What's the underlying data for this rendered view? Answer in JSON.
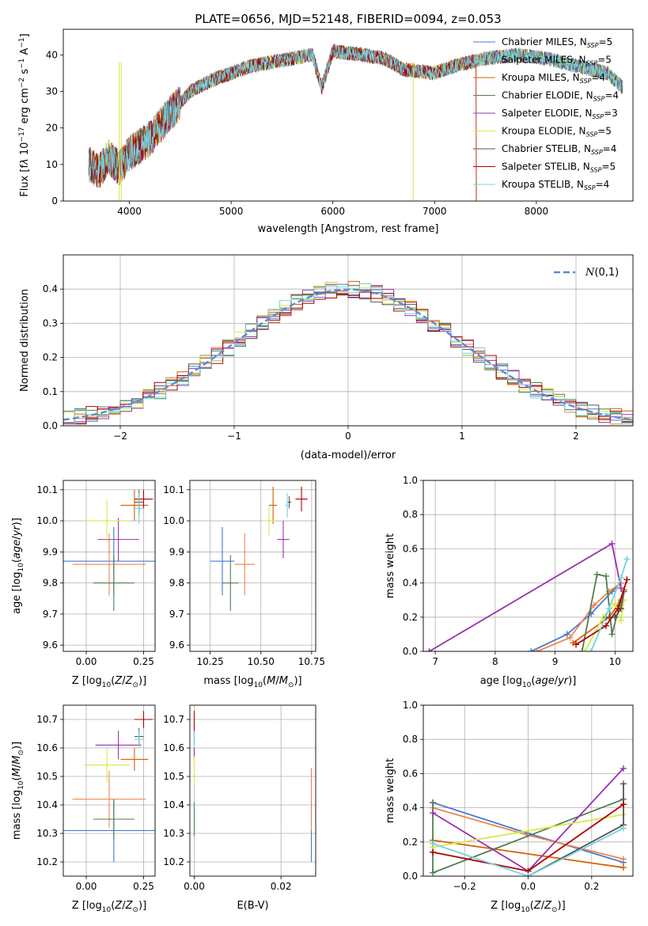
{
  "figure": {
    "title": "PLATE=0656, MJD=52148, FIBERID=0094, z=0.053"
  },
  "models": [
    {
      "name": "Chabrier MILES",
      "nssp": "5",
      "color": "#4878d0"
    },
    {
      "name": "Salpeter MILES",
      "nssp": "5",
      "color": "#ee854a"
    },
    {
      "name": "Kroupa MILES",
      "nssp": "4",
      "color": "#d65f00"
    },
    {
      "name": "Chabrier ELODIE",
      "nssp": "4",
      "color": "#4f7f4f"
    },
    {
      "name": "Salpeter ELODIE",
      "nssp": "3",
      "color": "#9b30b0"
    },
    {
      "name": "Kroupa ELODIE",
      "nssp": "5",
      "color": "#d8e84a"
    },
    {
      "name": "Chabrier STELIB",
      "nssp": "4",
      "color": "#555555"
    },
    {
      "name": "Salpeter STELIB",
      "nssp": "5",
      "color": "#b00000"
    },
    {
      "name": "Kroupa STELIB",
      "nssp": "4",
      "color": "#76d2de"
    }
  ],
  "chart_data": [
    {
      "id": "spectrum",
      "type": "line",
      "xlabel": "wavelength [Angstrom, rest frame]",
      "ylabel": "Flux [f_λ 10^-17 erg cm^-2 s^-1 A^-1]",
      "xlim": [
        3350,
        8950
      ],
      "ylim": [
        0,
        47
      ],
      "xticks": [
        4000,
        5000,
        6000,
        7000,
        8000
      ],
      "yticks": [
        0,
        10,
        20,
        30,
        40
      ],
      "legend_position": "top-right",
      "continuum": [
        [
          3600,
          10
        ],
        [
          3700,
          8
        ],
        [
          3800,
          12
        ],
        [
          3900,
          9
        ],
        [
          4000,
          13
        ],
        [
          4200,
          17
        ],
        [
          4400,
          24
        ],
        [
          4600,
          30
        ],
        [
          4800,
          33
        ],
        [
          5000,
          35
        ],
        [
          5200,
          37
        ],
        [
          5400,
          38
        ],
        [
          5600,
          39
        ],
        [
          5800,
          40
        ],
        [
          5890,
          31
        ],
        [
          6000,
          41
        ],
        [
          6300,
          40
        ],
        [
          6500,
          39
        ],
        [
          6700,
          36
        ],
        [
          7000,
          35
        ],
        [
          7200,
          37
        ],
        [
          7500,
          39
        ],
        [
          7800,
          40
        ],
        [
          8100,
          39
        ],
        [
          8400,
          37
        ],
        [
          8700,
          35
        ],
        [
          8850,
          31
        ]
      ]
    },
    {
      "id": "residuals",
      "type": "histogram",
      "xlabel": "(data-model)/error",
      "ylabel": "Normed distribution",
      "xlim": [
        -2.5,
        2.5
      ],
      "ylim": [
        0,
        0.5
      ],
      "xticks": [
        -2,
        -1,
        0,
        1,
        2
      ],
      "yticks": [
        0.0,
        0.1,
        0.2,
        0.3,
        0.4
      ],
      "grid": true,
      "legend_position": "top-right",
      "reference": "N(0,1)",
      "bin_width": 0.1
    },
    {
      "id": "age_vs_Z",
      "type": "errorbar",
      "xlabel": "Z [log10(Z/Z⊙)]",
      "ylabel": "age [log10(age/yr)]",
      "xlim": [
        -0.1,
        0.3
      ],
      "ylim": [
        9.58,
        10.13
      ],
      "xticks": [
        0.0,
        0.25
      ],
      "yticks": [
        9.6,
        9.7,
        9.8,
        9.9,
        10.0,
        10.1
      ],
      "grid": true,
      "points": [
        {
          "x": 0.12,
          "y": 9.87,
          "xerr": 0.23,
          "yerr": 0.11,
          "model": 0
        },
        {
          "x": 0.1,
          "y": 9.86,
          "xerr": 0.16,
          "yerr": 0.1,
          "model": 1
        },
        {
          "x": 0.21,
          "y": 10.05,
          "xerr": 0.06,
          "yerr": 0.05,
          "model": 2
        },
        {
          "x": 0.12,
          "y": 9.8,
          "xerr": 0.09,
          "yerr": 0.09,
          "model": 3
        },
        {
          "x": 0.14,
          "y": 9.94,
          "xerr": 0.09,
          "yerr": 0.07,
          "model": 4
        },
        {
          "x": 0.09,
          "y": 10.0,
          "xerr": 0.1,
          "yerr": 0.07,
          "model": 5
        },
        {
          "x": 0.23,
          "y": 10.06,
          "xerr": 0.02,
          "yerr": 0.04,
          "model": 6
        },
        {
          "x": 0.25,
          "y": 10.07,
          "xerr": 0.04,
          "yerr": 0.03,
          "model": 7
        },
        {
          "x": 0.23,
          "y": 10.04,
          "xerr": 0.02,
          "yerr": 0.05,
          "model": 8
        }
      ]
    },
    {
      "id": "age_vs_mass",
      "type": "errorbar",
      "xlabel": "mass [log10(M/M⊙)]",
      "xlim": [
        10.15,
        10.77
      ],
      "ylim": [
        9.58,
        10.13
      ],
      "xticks": [
        10.25,
        10.5,
        10.75
      ],
      "yticks": [
        9.6,
        9.7,
        9.8,
        9.9,
        10.0,
        10.1
      ],
      "grid": true,
      "points": [
        {
          "x": 10.31,
          "y": 9.87,
          "xerr": 0.06,
          "yerr": 0.11,
          "model": 0
        },
        {
          "x": 10.42,
          "y": 9.86,
          "xerr": 0.05,
          "yerr": 0.1,
          "model": 1
        },
        {
          "x": 10.56,
          "y": 10.05,
          "xerr": 0.02,
          "yerr": 0.06,
          "model": 2
        },
        {
          "x": 10.35,
          "y": 9.8,
          "xerr": 0.04,
          "yerr": 0.09,
          "model": 3
        },
        {
          "x": 10.61,
          "y": 9.94,
          "xerr": 0.03,
          "yerr": 0.06,
          "model": 4
        },
        {
          "x": 10.54,
          "y": 10.0,
          "xerr": 0.03,
          "yerr": 0.05,
          "model": 5
        },
        {
          "x": 10.64,
          "y": 10.06,
          "xerr": 0.01,
          "yerr": 0.02,
          "model": 6
        },
        {
          "x": 10.7,
          "y": 10.07,
          "xerr": 0.03,
          "yerr": 0.04,
          "model": 7
        },
        {
          "x": 10.63,
          "y": 10.05,
          "xerr": 0.01,
          "yerr": 0.04,
          "model": 8
        }
      ]
    },
    {
      "id": "weight_vs_age",
      "type": "line",
      "xlabel": "age [log10(age/yr)]",
      "ylabel": "mass weight",
      "xlim": [
        6.8,
        10.3
      ],
      "ylim": [
        0,
        1.0
      ],
      "xticks": [
        7,
        8,
        9,
        10
      ],
      "yticks": [
        0.0,
        0.2,
        0.4,
        0.6,
        0.8,
        1.0
      ],
      "grid": true,
      "series": [
        {
          "model": 0,
          "points": [
            [
              8.6,
              0.0
            ],
            [
              9.2,
              0.1
            ],
            [
              9.6,
              0.22
            ],
            [
              9.95,
              0.35
            ],
            [
              10.1,
              0.4
            ]
          ]
        },
        {
          "model": 1,
          "points": [
            [
              8.7,
              0.0
            ],
            [
              9.25,
              0.08
            ],
            [
              9.65,
              0.27
            ],
            [
              9.9,
              0.35
            ],
            [
              10.1,
              0.4
            ]
          ]
        },
        {
          "model": 2,
          "points": [
            [
              9.3,
              0.05
            ],
            [
              9.9,
              0.2
            ],
            [
              10.05,
              0.27
            ],
            [
              10.15,
              0.36
            ]
          ]
        },
        {
          "model": 3,
          "points": [
            [
              9.45,
              0.0
            ],
            [
              9.7,
              0.45
            ],
            [
              9.85,
              0.44
            ],
            [
              9.95,
              0.1
            ],
            [
              10.1,
              0.3
            ]
          ]
        },
        {
          "model": 4,
          "points": [
            [
              6.9,
              0.0
            ],
            [
              9.95,
              0.63
            ],
            [
              10.1,
              0.37
            ]
          ]
        },
        {
          "model": 5,
          "points": [
            [
              9.5,
              0.0
            ],
            [
              9.8,
              0.2
            ],
            [
              10.0,
              0.28
            ],
            [
              10.1,
              0.18
            ],
            [
              10.15,
              0.3
            ]
          ]
        },
        {
          "model": 6,
          "points": [
            [
              9.85,
              0.2
            ],
            [
              10.0,
              0.2
            ],
            [
              10.1,
              0.25
            ],
            [
              10.15,
              0.35
            ]
          ]
        },
        {
          "model": 7,
          "points": [
            [
              9.35,
              0.04
            ],
            [
              9.85,
              0.15
            ],
            [
              10.05,
              0.25
            ],
            [
              10.2,
              0.42
            ]
          ]
        },
        {
          "model": 8,
          "points": [
            [
              9.6,
              0.0
            ],
            [
              9.9,
              0.25
            ],
            [
              10.1,
              0.43
            ],
            [
              10.2,
              0.54
            ]
          ]
        }
      ]
    },
    {
      "id": "mass_vs_Z",
      "type": "errorbar",
      "xlabel": "Z [log10(Z/Z⊙)]",
      "ylabel": "mass [log10(M/M⊙)]",
      "xlim": [
        -0.1,
        0.3
      ],
      "ylim": [
        10.15,
        10.75
      ],
      "xticks": [
        0.0,
        0.25
      ],
      "yticks": [
        10.2,
        10.3,
        10.4,
        10.5,
        10.6,
        10.7
      ],
      "grid": true,
      "points": [
        {
          "x": 0.12,
          "y": 10.31,
          "xerr": 0.23,
          "yerr": 0.11,
          "model": 0
        },
        {
          "x": 0.1,
          "y": 10.42,
          "xerr": 0.16,
          "yerr": 0.1,
          "model": 1
        },
        {
          "x": 0.21,
          "y": 10.56,
          "xerr": 0.06,
          "yerr": 0.04,
          "model": 2
        },
        {
          "x": 0.12,
          "y": 10.35,
          "xerr": 0.09,
          "yerr": 0.07,
          "model": 3
        },
        {
          "x": 0.14,
          "y": 10.61,
          "xerr": 0.1,
          "yerr": 0.05,
          "model": 4
        },
        {
          "x": 0.09,
          "y": 10.54,
          "xerr": 0.1,
          "yerr": 0.06,
          "model": 5
        },
        {
          "x": 0.23,
          "y": 10.64,
          "xerr": 0.02,
          "yerr": 0.03,
          "model": 6
        },
        {
          "x": 0.25,
          "y": 10.7,
          "xerr": 0.04,
          "yerr": 0.03,
          "model": 7
        },
        {
          "x": 0.23,
          "y": 10.63,
          "xerr": 0.02,
          "yerr": 0.03,
          "model": 8
        }
      ]
    },
    {
      "id": "mass_vs_ebv",
      "type": "errorbar",
      "xlabel": "E(B-V)",
      "xlim": [
        -0.001,
        0.028
      ],
      "ylim": [
        10.15,
        10.75
      ],
      "xticks": [
        0.0,
        0.02
      ],
      "yticks": [
        10.2,
        10.3,
        10.4,
        10.5,
        10.6,
        10.7
      ],
      "grid": true,
      "points": [
        {
          "x": 0.027,
          "y": 10.31,
          "xerr": 0,
          "yerr": 0.11,
          "model": 0
        },
        {
          "x": 0.027,
          "y": 10.42,
          "xerr": 0,
          "yerr": 0.11,
          "model": 1
        },
        {
          "x": 0.0,
          "y": 10.56,
          "xerr": 0,
          "yerr": 0.04,
          "model": 2
        },
        {
          "x": 0.0,
          "y": 10.35,
          "xerr": 0,
          "yerr": 0.06,
          "model": 3
        },
        {
          "x": 0.0,
          "y": 10.61,
          "xerr": 0,
          "yerr": 0.05,
          "model": 4
        },
        {
          "x": 0.0,
          "y": 10.52,
          "xerr": 0,
          "yerr": 0.05,
          "model": 5
        },
        {
          "x": 0.0,
          "y": 10.64,
          "xerr": 0,
          "yerr": 0.03,
          "model": 6
        },
        {
          "x": 0.0,
          "y": 10.69,
          "xerr": 0,
          "yerr": 0.04,
          "model": 7
        },
        {
          "x": 0.0,
          "y": 10.63,
          "xerr": 0,
          "yerr": 0.03,
          "model": 8
        }
      ]
    },
    {
      "id": "weight_vs_Z",
      "type": "line",
      "xlabel": "Z [log10(Z/Z⊙)]",
      "ylabel": "mass weight",
      "xlim": [
        -0.33,
        0.33
      ],
      "ylim": [
        0,
        1.0
      ],
      "xticks": [
        -0.2,
        0.0,
        0.2
      ],
      "yticks": [
        0.0,
        0.2,
        0.4,
        0.6,
        0.8,
        1.0
      ],
      "grid": true,
      "series": [
        {
          "model": 0,
          "points": [
            [
              -0.3,
              0.43
            ],
            [
              0.0,
              0.25
            ],
            [
              0.3,
              0.08
            ]
          ]
        },
        {
          "model": 1,
          "points": [
            [
              -0.3,
              0.4
            ],
            [
              0.0,
              0.24
            ],
            [
              0.3,
              0.1
            ]
          ]
        },
        {
          "model": 2,
          "points": [
            [
              -0.3,
              0.21
            ],
            [
              0.3,
              0.05
            ]
          ]
        },
        {
          "model": 3,
          "points": [
            [
              -0.3,
              0.43
            ],
            [
              -0.3,
              0.02
            ],
            [
              0.3,
              0.45
            ]
          ]
        },
        {
          "model": 4,
          "points": [
            [
              -0.3,
              0.37
            ],
            [
              0.0,
              0.03
            ],
            [
              0.3,
              0.63
            ]
          ]
        },
        {
          "model": 5,
          "points": [
            [
              -0.3,
              0.17
            ],
            [
              0.3,
              0.36
            ]
          ]
        },
        {
          "model": 6,
          "points": [
            [
              0.0,
              0.0
            ],
            [
              0.3,
              0.3
            ],
            [
              0.3,
              0.54
            ]
          ]
        },
        {
          "model": 7,
          "points": [
            [
              -0.3,
              0.14
            ],
            [
              0.0,
              0.03
            ],
            [
              0.3,
              0.42
            ]
          ]
        },
        {
          "model": 8,
          "points": [
            [
              -0.3,
              0.19
            ],
            [
              0.0,
              0.0
            ],
            [
              0.3,
              0.28
            ]
          ]
        }
      ]
    }
  ]
}
